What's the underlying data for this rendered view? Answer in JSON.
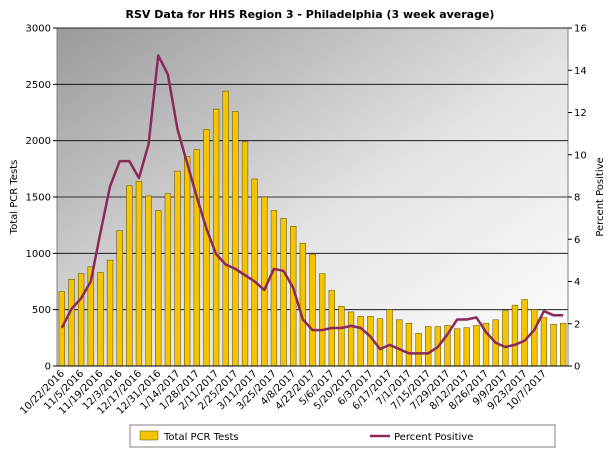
{
  "chart_data": {
    "type": "bar-line",
    "title": "RSV Data for HHS Region 3 - Philadelphia (3 week average)",
    "y_label": "Total PCR Tests",
    "y2_label": "Percent Positive",
    "categories": [
      "10/22/2016",
      null,
      "11/5/2016",
      null,
      "11/19/2016",
      null,
      "12/3/2016",
      null,
      "12/17/2016",
      null,
      "12/31/2016",
      null,
      "1/14/2017",
      null,
      "1/28/2017",
      null,
      "2/11/2017",
      null,
      "2/25/2017",
      null,
      "3/11/2017",
      null,
      "3/25/2017",
      null,
      "4/8/2017",
      null,
      "4/22/2017",
      null,
      "5/6/2017",
      null,
      "5/20/2017",
      null,
      "6/3/2017",
      null,
      "6/17/2017",
      null,
      "7/1/2017",
      null,
      "7/15/2017",
      null,
      "7/29/2017",
      null,
      "8/12/2017",
      null,
      "8/26/2017",
      null,
      "9/9/2017",
      null,
      "9/23/2017",
      null,
      "10/7/2017",
      null,
      null
    ],
    "series": [
      {
        "name": "Total PCR Tests",
        "type": "bar",
        "color": "#f5c400",
        "values": [
          660,
          770,
          820,
          880,
          830,
          940,
          1200,
          1600,
          1640,
          1510,
          1380,
          1530,
          1730,
          1860,
          1920,
          2100,
          2280,
          2440,
          2260,
          1990,
          1660,
          1500,
          1380,
          1310,
          1240,
          1090,
          990,
          820,
          670,
          530,
          480,
          440,
          440,
          420,
          500,
          410,
          380,
          290,
          350,
          350,
          360,
          330,
          340,
          360,
          380,
          410,
          490,
          540,
          590,
          500,
          430,
          370,
          380
        ]
      },
      {
        "name": "Percent Positive",
        "type": "line",
        "axis": "y2",
        "color": "#8b2a5a",
        "values": [
          1.8,
          2.7,
          3.2,
          4.0,
          6.3,
          8.5,
          9.7,
          9.7,
          8.9,
          10.5,
          14.7,
          13.8,
          11.2,
          9.6,
          8.0,
          6.5,
          5.3,
          4.8,
          4.6,
          4.3,
          4.0,
          3.6,
          4.6,
          4.5,
          3.7,
          2.2,
          1.7,
          1.7,
          1.8,
          1.8,
          1.9,
          1.8,
          1.4,
          0.8,
          1.0,
          0.8,
          0.6,
          0.6,
          0.6,
          0.9,
          1.5,
          2.2,
          2.2,
          2.3,
          1.6,
          1.1,
          0.9,
          1.0,
          1.2,
          1.7,
          2.6,
          2.4,
          2.4
        ]
      }
    ],
    "ylim": [
      0,
      3000
    ],
    "yticks": [
      0,
      500,
      1000,
      1500,
      2000,
      2500,
      3000
    ],
    "y2lim": [
      0,
      16
    ],
    "y2ticks": [
      0,
      2,
      4,
      6,
      8,
      10,
      12,
      14,
      16
    ],
    "grid": true,
    "legend": "bottom"
  }
}
